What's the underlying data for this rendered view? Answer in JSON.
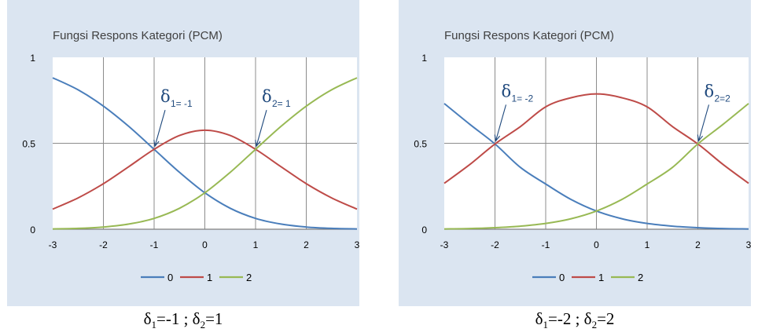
{
  "chart_data": [
    {
      "type": "line",
      "title": "Fungsi Respons Kategori (PCM)",
      "xlabel": "",
      "ylabel": "",
      "xlim": [
        -3,
        3
      ],
      "ylim": [
        0,
        1
      ],
      "x_ticks": [
        "-3",
        "-2",
        "-1",
        "0",
        "1",
        "2",
        "3"
      ],
      "y_ticks": [
        "0",
        "0.5",
        "1"
      ],
      "grid": true,
      "legend_position": "bottom",
      "x": [
        -3,
        -2.5,
        -2,
        -1.5,
        -1,
        -0.5,
        0,
        0.5,
        1,
        1.5,
        2,
        2.5,
        3
      ],
      "series": [
        {
          "name": "0",
          "color": "#4a7ebb",
          "values": [
            0.881,
            0.811,
            0.716,
            0.598,
            0.465,
            0.331,
            0.212,
            0.122,
            0.063,
            0.03,
            0.013,
            0.005,
            0.002
          ]
        },
        {
          "name": "1",
          "color": "#be4b48",
          "values": [
            0.117,
            0.182,
            0.265,
            0.364,
            0.465,
            0.545,
            0.576,
            0.545,
            0.465,
            0.364,
            0.265,
            0.182,
            0.117
          ]
        },
        {
          "name": "2",
          "color": "#98b954",
          "values": [
            0.002,
            0.005,
            0.013,
            0.03,
            0.063,
            0.122,
            0.212,
            0.331,
            0.465,
            0.598,
            0.716,
            0.811,
            0.881
          ]
        }
      ],
      "annotations": [
        {
          "sym": "δ",
          "sub": "1= -1",
          "x": -1,
          "y": 0.465
        },
        {
          "sym": "δ",
          "sub": "2= 1",
          "x": 1,
          "y": 0.465
        }
      ],
      "caption": {
        "d1_sym": "δ",
        "d1_sub": "1",
        "d1_val": "=-1 ; ",
        "d2_sym": "δ",
        "d2_sub": "2",
        "d2_val": "=1"
      }
    },
    {
      "type": "line",
      "title": "Fungsi Respons Kategori (PCM)",
      "xlabel": "",
      "ylabel": "",
      "xlim": [
        -3,
        3
      ],
      "ylim": [
        0,
        1
      ],
      "x_ticks": [
        "-3",
        "-2",
        "-1",
        "0",
        "1",
        "2",
        "3"
      ],
      "y_ticks": [
        "0",
        "0.5",
        "1"
      ],
      "grid": true,
      "legend_position": "bottom",
      "x": [
        -3,
        -2.5,
        -2,
        -1.5,
        -1,
        -0.5,
        0,
        0.5,
        1,
        1.5,
        2,
        2.5,
        3
      ],
      "series": [
        {
          "name": "0",
          "color": "#4a7ebb",
          "values": [
            0.731,
            0.611,
            0.496,
            0.36,
            0.263,
            0.173,
            0.106,
            0.061,
            0.034,
            0.018,
            0.009,
            0.004,
            0.002
          ]
        },
        {
          "name": "1",
          "color": "#be4b48",
          "values": [
            0.267,
            0.376,
            0.496,
            0.597,
            0.712,
            0.765,
            0.787,
            0.765,
            0.712,
            0.597,
            0.496,
            0.376,
            0.267
          ]
        },
        {
          "name": "2",
          "color": "#98b954",
          "values": [
            0.002,
            0.004,
            0.009,
            0.018,
            0.034,
            0.061,
            0.106,
            0.173,
            0.263,
            0.36,
            0.496,
            0.611,
            0.731
          ]
        }
      ],
      "annotations": [
        {
          "sym": "δ",
          "sub": "1= -2",
          "x": -2,
          "y": 0.496
        },
        {
          "sym": "δ",
          "sub": "2=2",
          "x": 2,
          "y": 0.496
        }
      ],
      "caption": {
        "d1_sym": "δ",
        "d1_sub": "1",
        "d1_val": "=-2 ; ",
        "d2_sym": "δ",
        "d2_sub": "2",
        "d2_val": "=2"
      }
    }
  ]
}
